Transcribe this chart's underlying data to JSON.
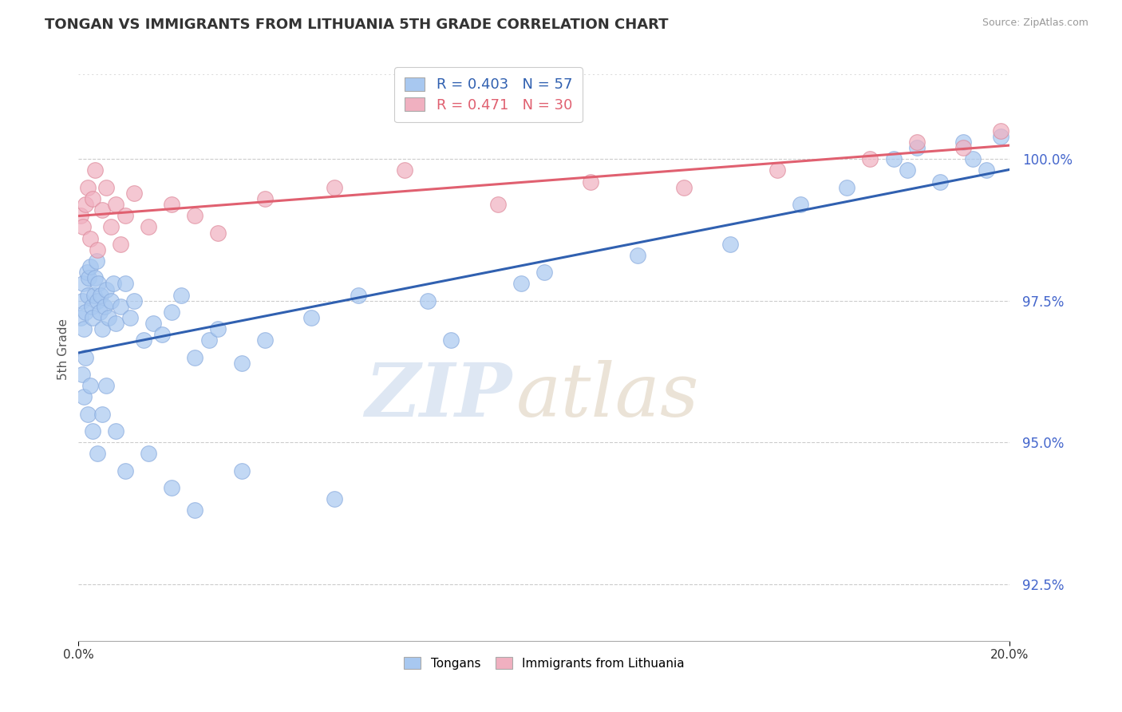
{
  "title": "TONGAN VS IMMIGRANTS FROM LITHUANIA 5TH GRADE CORRELATION CHART",
  "source": "Source: ZipAtlas.com",
  "ylabel": "5th Grade",
  "yticks": [
    92.5,
    95.0,
    97.5,
    100.0
  ],
  "xlim": [
    0.0,
    20.0
  ],
  "ylim": [
    91.5,
    101.8
  ],
  "legend_blue_label": "R = 0.403   N = 57",
  "legend_pink_label": "R = 0.471   N = 30",
  "blue_color": "#a8c8f0",
  "pink_color": "#f0b0c0",
  "blue_line_color": "#3060b0",
  "pink_line_color": "#e06070",
  "blue_edge_color": "#88aadd",
  "pink_edge_color": "#dd8899",
  "tongans_x": [
    0.05,
    0.08,
    0.1,
    0.12,
    0.15,
    0.18,
    0.2,
    0.22,
    0.25,
    0.28,
    0.3,
    0.33,
    0.35,
    0.38,
    0.4,
    0.42,
    0.45,
    0.48,
    0.5,
    0.55,
    0.6,
    0.65,
    0.7,
    0.75,
    0.8,
    0.9,
    1.0,
    1.1,
    1.2,
    1.4,
    1.6,
    1.8,
    2.0,
    2.2,
    2.5,
    2.8,
    3.0,
    3.5,
    4.0,
    5.0,
    6.0,
    7.5,
    8.0,
    9.5,
    10.0,
    12.0,
    14.0,
    15.5,
    16.5,
    17.5,
    17.8,
    18.0,
    18.5,
    19.0,
    19.2,
    19.5,
    19.8
  ],
  "tongans_y": [
    97.2,
    97.5,
    97.8,
    97.0,
    97.3,
    98.0,
    97.6,
    97.9,
    98.1,
    97.4,
    97.2,
    97.6,
    97.9,
    98.2,
    97.5,
    97.8,
    97.3,
    97.6,
    97.0,
    97.4,
    97.7,
    97.2,
    97.5,
    97.8,
    97.1,
    97.4,
    97.8,
    97.2,
    97.5,
    96.8,
    97.1,
    96.9,
    97.3,
    97.6,
    96.5,
    96.8,
    97.0,
    96.4,
    96.8,
    97.2,
    97.6,
    97.5,
    96.8,
    97.8,
    98.0,
    98.3,
    98.5,
    99.2,
    99.5,
    100.0,
    99.8,
    100.2,
    99.6,
    100.3,
    100.0,
    99.8,
    100.4
  ],
  "lithuania_x": [
    0.05,
    0.1,
    0.15,
    0.2,
    0.25,
    0.3,
    0.35,
    0.4,
    0.5,
    0.6,
    0.7,
    0.8,
    0.9,
    1.0,
    1.2,
    1.5,
    2.0,
    2.5,
    3.0,
    4.0,
    5.5,
    7.0,
    9.0,
    11.0,
    13.0,
    15.0,
    17.0,
    18.0,
    19.0,
    19.8
  ],
  "lithuania_y": [
    99.0,
    98.8,
    99.2,
    99.5,
    98.6,
    99.3,
    99.8,
    98.4,
    99.1,
    99.5,
    98.8,
    99.2,
    98.5,
    99.0,
    99.4,
    98.8,
    99.2,
    99.0,
    98.7,
    99.3,
    99.5,
    99.8,
    99.2,
    99.6,
    99.5,
    99.8,
    100.0,
    100.3,
    100.2,
    100.5
  ],
  "blue_outliers_x": [
    0.08,
    0.12,
    0.15,
    0.2,
    0.25,
    0.3,
    0.4,
    0.5,
    0.6,
    0.8,
    1.0,
    1.5,
    2.0,
    2.5,
    3.5,
    5.5
  ],
  "blue_outliers_y": [
    96.2,
    95.8,
    96.5,
    95.5,
    96.0,
    95.2,
    94.8,
    95.5,
    96.0,
    95.2,
    94.5,
    94.8,
    94.2,
    93.8,
    94.5,
    94.0
  ]
}
